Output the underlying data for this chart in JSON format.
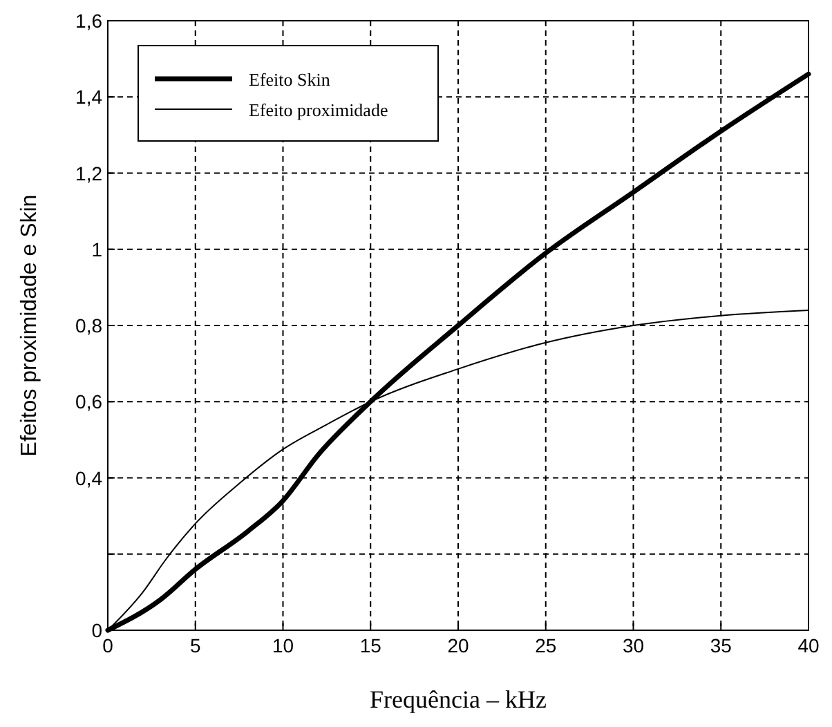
{
  "chart_data": {
    "type": "line",
    "xlabel": "Frequência – kHz",
    "ylabel": "Efeitos proximidade e Skin",
    "xlim": [
      0,
      40
    ],
    "ylim": [
      0,
      1.6
    ],
    "xticks": [
      0,
      5,
      10,
      15,
      20,
      25,
      30,
      35,
      40
    ],
    "yticks": [
      0,
      {
        "value": 0.2,
        "label": null
      },
      {
        "value": 0.4,
        "label": "0,4"
      },
      {
        "value": 0.6,
        "label": "0,6"
      },
      {
        "value": 0.8,
        "label": "0,8"
      },
      1,
      {
        "value": 1.2,
        "label": "1,2"
      },
      {
        "value": 1.4,
        "label": "1,4"
      },
      {
        "value": 1.6,
        "label": "1,6"
      }
    ],
    "grid": true,
    "legend": "top left",
    "marker": "none",
    "line_style": "solid",
    "series": [
      {
        "name": "Efeito Skin",
        "color": "#000000",
        "x": [
          0,
          3,
          5,
          8,
          10,
          12,
          15,
          20,
          25,
          30,
          35,
          40
        ],
        "values": [
          0,
          0.08,
          0.16,
          0.26,
          0.34,
          0.46,
          0.6,
          0.8,
          0.99,
          1.15,
          1.31,
          1.46
        ]
      },
      {
        "name": "Efeito proximidade",
        "color": "#000000",
        "x": [
          0,
          2,
          3.3,
          5,
          7.5,
          10,
          12.5,
          15,
          20,
          25,
          30,
          35,
          40
        ],
        "values": [
          0,
          0.1,
          0.185,
          0.28,
          0.385,
          0.475,
          0.54,
          0.6,
          0.686,
          0.755,
          0.8,
          0.826,
          0.84
        ]
      }
    ]
  }
}
